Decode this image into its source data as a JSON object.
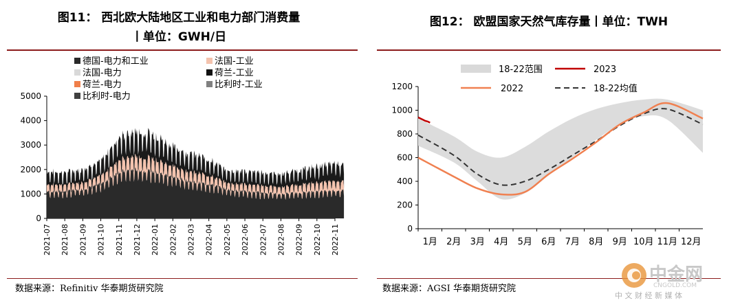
{
  "left": {
    "title_line1": "图11：  西北欧大陆地区工业和电力部门消费量",
    "title_line2": "丨单位：GWH/日",
    "source": "数据来源：Refinitiv 华泰期货研究院",
    "chart_data": {
      "type": "area",
      "stacked": true,
      "ylim": [
        0,
        5000
      ],
      "yticks": [
        0,
        1000,
        2000,
        3000,
        4000,
        5000
      ],
      "x_tick_labels": [
        "2021-07",
        "2021-08",
        "2021-09",
        "2021-10",
        "2021-11",
        "2021-12",
        "2022-01",
        "2022-02",
        "2022-03",
        "2022-04",
        "2022-05",
        "2022-06",
        "2022-07",
        "2022-08",
        "2022-09",
        "2022-10",
        "2022-11"
      ],
      "x_months": [
        0,
        1,
        2,
        3,
        4,
        5,
        6,
        7,
        8,
        9,
        10,
        11,
        12,
        13,
        14,
        15,
        16
      ],
      "legend": [
        {
          "name": "德国-电力和工业",
          "color": "#2a2a2a"
        },
        {
          "name": "法国-工业",
          "color": "#f4c3ae"
        },
        {
          "name": "法国-电力",
          "color": "#d9d9d9"
        },
        {
          "name": "荷兰-工业",
          "color": "#111111"
        },
        {
          "name": "荷兰-电力",
          "color": "#f07f4a"
        },
        {
          "name": "比利时-工业",
          "color": "#808080"
        },
        {
          "name": "比利时-电力",
          "color": "#404040"
        }
      ],
      "monthly_totals": [
        {
          "month": "2021-07",
          "base": 1100,
          "top": 1900
        },
        {
          "month": "2021-08",
          "base": 1100,
          "top": 1850
        },
        {
          "month": "2021-09",
          "base": 1200,
          "top": 2000
        },
        {
          "month": "2021-10",
          "base": 1400,
          "top": 2300
        },
        {
          "month": "2021-11",
          "base": 1900,
          "top": 3300
        },
        {
          "month": "2021-12",
          "base": 2000,
          "top": 3500
        },
        {
          "month": "2022-01",
          "base": 1900,
          "top": 3400
        },
        {
          "month": "2022-02",
          "base": 1700,
          "top": 2900
        },
        {
          "month": "2022-03",
          "base": 1500,
          "top": 2600
        },
        {
          "month": "2022-04",
          "base": 1400,
          "top": 2400
        },
        {
          "month": "2022-05",
          "base": 1200,
          "top": 1950
        },
        {
          "month": "2022-06",
          "base": 1100,
          "top": 1900
        },
        {
          "month": "2022-07",
          "base": 1050,
          "top": 1850
        },
        {
          "month": "2022-08",
          "base": 1000,
          "top": 1800
        },
        {
          "month": "2022-09",
          "base": 1050,
          "top": 1950
        },
        {
          "month": "2022-10",
          "base": 1100,
          "top": 2100
        },
        {
          "month": "2022-11",
          "base": 1150,
          "top": 2250
        }
      ]
    }
  },
  "right": {
    "title": "图12：  欧盟国家天然气库存量丨单位：TWH",
    "source": "数据来源：AGSI 华泰期货研究院",
    "chart_data": {
      "type": "line",
      "ylim": [
        0,
        1200
      ],
      "yticks": [
        0,
        200,
        400,
        600,
        800,
        1000,
        1200
      ],
      "categories": [
        "1月",
        "2月",
        "3月",
        "4月",
        "5月",
        "6月",
        "7月",
        "8月",
        "9月",
        "10月",
        "11月",
        "12月"
      ],
      "legend": [
        {
          "name": "18-22范围",
          "color": "#d9d9d9"
        },
        {
          "name": "2023",
          "color": "#c00000"
        },
        {
          "name": "2022",
          "color": "#f08050"
        },
        {
          "name": "18-22均值",
          "color": "#333333"
        }
      ],
      "series": [
        {
          "name": "18-22范围",
          "lower": [
            700,
            560,
            400,
            250,
            300,
            450,
            600,
            750,
            880,
            950,
            920,
            640
          ],
          "upper": [
            930,
            780,
            650,
            600,
            690,
            820,
            930,
            1010,
            1060,
            1090,
            1090,
            1000
          ]
        },
        {
          "name": "2023",
          "x": [
            0,
            0.1,
            0.2,
            0.3,
            0.4,
            0.5
          ],
          "values": [
            940,
            930,
            920,
            910,
            905,
            895
          ]
        },
        {
          "name": "18-22均值",
          "values": [
            790,
            620,
            460,
            370,
            400,
            500,
            620,
            740,
            870,
            970,
            1010,
            880
          ]
        },
        {
          "name": "2022",
          "values": [
            600,
            440,
            340,
            290,
            310,
            460,
            590,
            730,
            880,
            980,
            1060,
            930
          ]
        }
      ]
    }
  },
  "watermark": {
    "brand": "中金网",
    "url": "CNGOLD.COM",
    "tagline": "中 文 财 经 新 媒 体"
  }
}
